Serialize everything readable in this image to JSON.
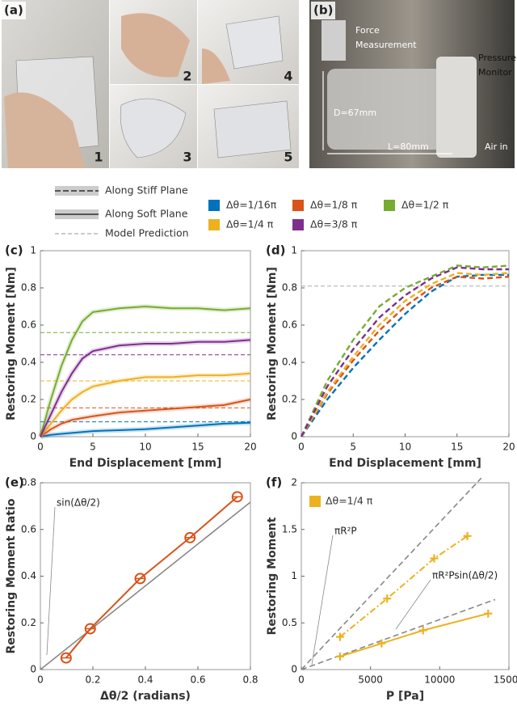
{
  "photos": {
    "a_label": "(a)",
    "a_numbers": [
      "1",
      "2",
      "3",
      "4",
      "5"
    ],
    "b_label": "(b)",
    "b_annotations": [
      "Force",
      "Measurement",
      "Pressure",
      "Monitor",
      "D=67mm",
      "L=80mm",
      "Air in"
    ]
  },
  "style_legend": [
    "Along Stiff Plane",
    "Along Soft Plane",
    "Model Prediction"
  ],
  "chart_data": [
    {
      "type": "line",
      "panel_label": "(c)",
      "x_label": "End Displacement [mm]",
      "y_label": "Restoring Moment [Nm]",
      "xlim": [
        0,
        20
      ],
      "xticks": [
        0,
        5,
        10,
        15,
        20
      ],
      "ylim": [
        0,
        1
      ],
      "yticks": [
        0,
        0.2,
        0.4,
        0.6,
        0.8,
        1
      ],
      "line_style": "solid",
      "x": [
        0,
        1,
        2,
        3,
        4,
        5,
        7.5,
        10,
        12.5,
        15,
        17.5,
        20
      ],
      "series": [
        {
          "name": "Δθ=1/16π",
          "color": "#0072bd",
          "model": 0.08,
          "values": [
            0,
            0.01,
            0.015,
            0.02,
            0.025,
            0.03,
            0.035,
            0.04,
            0.05,
            0.06,
            0.07,
            0.075
          ]
        },
        {
          "name": "Δθ=1/8 π",
          "color": "#d95319",
          "model": 0.155,
          "values": [
            0,
            0.04,
            0.07,
            0.09,
            0.1,
            0.11,
            0.13,
            0.14,
            0.15,
            0.16,
            0.17,
            0.2
          ]
        },
        {
          "name": "Δθ=1/2 π",
          "color": "#77ac30",
          "model": 0.56,
          "values": [
            0,
            0.2,
            0.38,
            0.52,
            0.62,
            0.67,
            0.69,
            0.7,
            0.69,
            0.69,
            0.68,
            0.69
          ]
        },
        {
          "name": "Δθ=1/4 π",
          "color": "#edb120",
          "model": 0.3,
          "values": [
            0,
            0.07,
            0.14,
            0.2,
            0.24,
            0.27,
            0.3,
            0.32,
            0.32,
            0.33,
            0.33,
            0.34
          ]
        },
        {
          "name": "Δθ=3/8 π",
          "color": "#7e2f8e",
          "model": 0.44,
          "values": [
            0,
            0.12,
            0.24,
            0.34,
            0.42,
            0.46,
            0.49,
            0.5,
            0.5,
            0.51,
            0.51,
            0.52
          ]
        }
      ]
    },
    {
      "type": "line",
      "panel_label": "(d)",
      "x_label": "End Displacement [mm]",
      "y_label": "Restoring Moment [Nm]",
      "xlim": [
        0,
        20
      ],
      "xticks": [
        0,
        5,
        10,
        15,
        20
      ],
      "ylim": [
        0,
        1
      ],
      "yticks": [
        0,
        0.2,
        0.4,
        0.6,
        0.8,
        1
      ],
      "line_style": "dashed",
      "model": 0.81,
      "x": [
        0,
        2.5,
        5,
        7.5,
        10,
        12.5,
        15,
        17.5,
        20
      ],
      "series": [
        {
          "color": "#0072bd",
          "values": [
            0,
            0.2,
            0.37,
            0.52,
            0.66,
            0.78,
            0.86,
            0.87,
            0.87
          ]
        },
        {
          "color": "#d95319",
          "values": [
            0,
            0.23,
            0.41,
            0.57,
            0.7,
            0.8,
            0.86,
            0.85,
            0.86
          ]
        },
        {
          "color": "#77ac30",
          "values": [
            0,
            0.3,
            0.52,
            0.7,
            0.8,
            0.86,
            0.92,
            0.91,
            0.92
          ]
        },
        {
          "color": "#edb120",
          "values": [
            0,
            0.24,
            0.43,
            0.6,
            0.73,
            0.82,
            0.88,
            0.87,
            0.88
          ]
        },
        {
          "color": "#7e2f8e",
          "values": [
            0,
            0.27,
            0.47,
            0.64,
            0.76,
            0.85,
            0.91,
            0.9,
            0.9
          ]
        }
      ]
    },
    {
      "type": "line",
      "panel_label": "(e)",
      "x_label": "Δθ/2 (radians)",
      "y_label": "Restoring Moment Ratio",
      "xlim": [
        0,
        0.8
      ],
      "xticks": [
        0,
        0.2,
        0.4,
        0.6,
        0.8
      ],
      "ylim": [
        0,
        0.8
      ],
      "yticks": [
        0,
        0.2,
        0.4,
        0.6,
        0.8
      ],
      "reference_style": "solid",
      "references": [
        {
          "name": "sin(Δθ/2)",
          "x": [
            0,
            0.8
          ],
          "values": [
            0,
            0.717
          ]
        }
      ],
      "series": [
        {
          "color": "#d95319",
          "line_style": "solid",
          "marker": "circle",
          "x": [
            0.098,
            0.19,
            0.38,
            0.57,
            0.75
          ],
          "values": [
            0.05,
            0.175,
            0.39,
            0.565,
            0.74
          ]
        }
      ]
    },
    {
      "type": "line",
      "panel_label": "(f)",
      "x_label": "P [Pa]",
      "y_label": "Restoring Moment",
      "xlim": [
        0,
        15000
      ],
      "xticks": [
        0,
        5000,
        10000,
        15000
      ],
      "ylim": [
        0,
        2
      ],
      "yticks": [
        0,
        0.5,
        1,
        1.5,
        2
      ],
      "reference_style": "dashed",
      "references": [
        {
          "name": "πR²P",
          "x": [
            0,
            13000
          ],
          "values": [
            0,
            2.05
          ]
        },
        {
          "name": "πR²Psin(Δθ/2)",
          "x": [
            0,
            14000
          ],
          "values": [
            0,
            0.75
          ]
        }
      ],
      "series": [
        {
          "name": "Δθ=1/4 π",
          "color": "#edb120",
          "line_style": "dashdot",
          "marker": "plus",
          "x": [
            2800,
            6200,
            9600,
            12000
          ],
          "values": [
            0.35,
            0.76,
            1.19,
            1.43
          ]
        },
        {
          "color": "#edb120",
          "line_style": "solid",
          "marker": "plus",
          "x": [
            2800,
            5800,
            8800,
            13500
          ],
          "values": [
            0.14,
            0.28,
            0.42,
            0.6
          ]
        }
      ]
    }
  ]
}
